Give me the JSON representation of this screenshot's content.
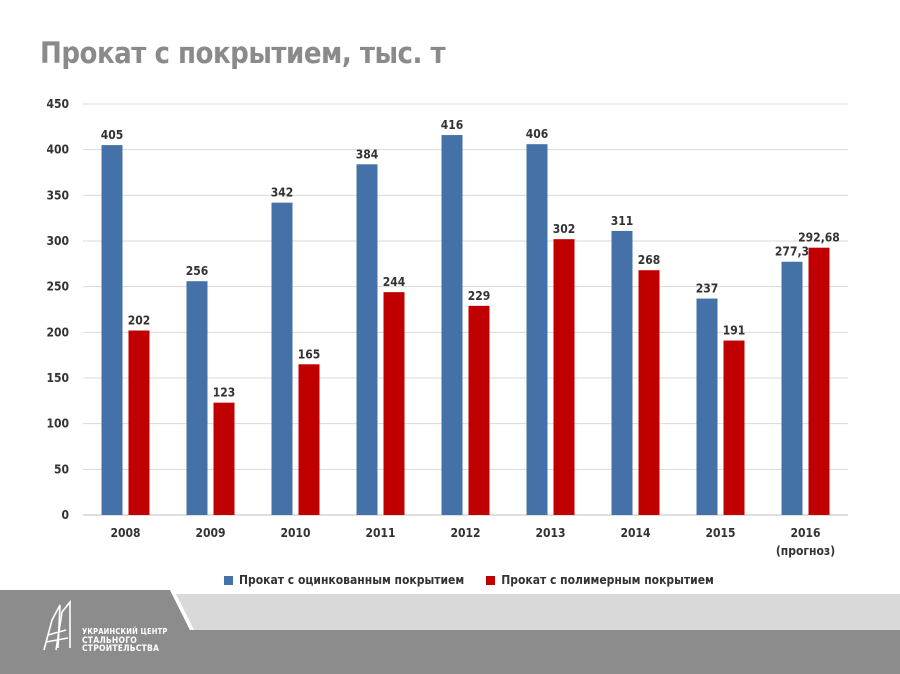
{
  "title": "Прокат с покрытием, тыс. т",
  "colors": {
    "galvanized": "#4472a8",
    "polymer": "#c00000",
    "title": "#8a8a8a",
    "footer_dark": "#8c8c8c",
    "footer_light": "#d6d6d6"
  },
  "legend": [
    {
      "label": "Прокат с оцинкованным покрытием",
      "color": "#4472a8"
    },
    {
      "label": "Прокат с полимерным покрытием",
      "color": "#c00000"
    }
  ],
  "logo": {
    "line1": "УКРАИНСКИЙ ЦЕНТР",
    "line2": "СТАЛЬНОГО",
    "line3": "СТРОИТЕЛЬСТВА",
    "icon": "building-logo-icon"
  },
  "chart_data": {
    "type": "bar",
    "title": "Прокат с покрытием, тыс. т",
    "categories": [
      "2008",
      "2009",
      "2010",
      "2011",
      "2012",
      "2013",
      "2014",
      "2015",
      "2016"
    ],
    "category_sublabels": [
      "",
      "",
      "",
      "",
      "",
      "",
      "",
      "",
      "(прогноз)"
    ],
    "series": [
      {
        "name": "Прокат с оцинкованным покрытием",
        "values": [
          405,
          256,
          342,
          384,
          416,
          406,
          311,
          237,
          277.3
        ],
        "labels": [
          "405",
          "256",
          "342",
          "384",
          "416",
          "406",
          "311",
          "237",
          "277,3"
        ]
      },
      {
        "name": "Прокат с полимерным покрытием",
        "values": [
          202,
          123,
          165,
          244,
          229,
          302,
          268,
          191,
          292.68
        ],
        "labels": [
          "202",
          "123",
          "165",
          "244",
          "229",
          "302",
          "268",
          "191",
          "292,68"
        ]
      }
    ],
    "ylim": [
      0,
      450
    ],
    "yticks": [
      0,
      50,
      100,
      150,
      200,
      250,
      300,
      350,
      400,
      450
    ],
    "grid": true,
    "legend_position": "bottom"
  }
}
